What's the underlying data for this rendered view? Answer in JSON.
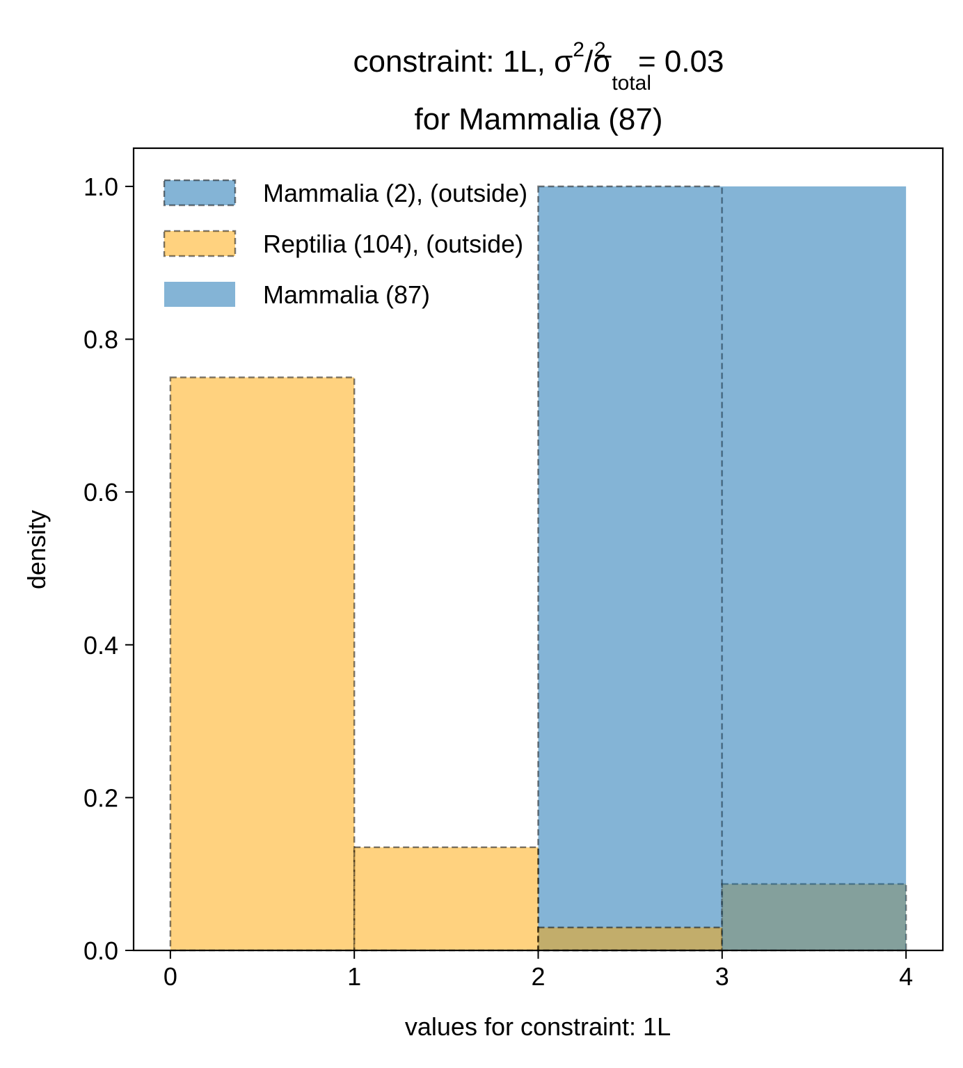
{
  "chart_data": {
    "type": "bar",
    "title": {
      "prefix": "constraint: 1L, σ",
      "sup1": "2",
      "mid": "/σ",
      "sub": "total",
      "sup2": "2",
      "suffix": " =  0.03",
      "line2": "for Mammalia (87)"
    },
    "xlabel": "values for constraint: 1L",
    "ylabel": "density",
    "xlim": [
      -0.2,
      4.2
    ],
    "ylim": [
      0,
      1.05
    ],
    "xticks": [
      0,
      1,
      2,
      3,
      4
    ],
    "xtick_labels": [
      "0",
      "1",
      "2",
      "3",
      "4"
    ],
    "yticks": [
      0,
      0.2,
      0.4,
      0.6,
      0.8,
      1.0
    ],
    "ytick_labels": [
      "0.0",
      "0.2",
      "0.4",
      "0.6",
      "0.8",
      "1.0"
    ],
    "bin_edges": [
      0,
      1,
      2,
      3,
      4
    ],
    "series": [
      {
        "name": "Mammalia (2), (outside)",
        "key": "mammalia-outside",
        "values": [
          0,
          0,
          1.0,
          0
        ],
        "color": "#1f77b4",
        "alpha": 0.55,
        "dashed_edge": true
      },
      {
        "name": "Reptilia (104), (outside)",
        "key": "reptilia-outside",
        "values": [
          0.75,
          0.135,
          0.03,
          0.087
        ],
        "color": "#ffa500",
        "alpha": 0.5,
        "dashed_edge": true
      },
      {
        "name": "Mammalia (87)",
        "key": "mammalia",
        "values": [
          0,
          0,
          0,
          1.0
        ],
        "color": "#1f77b4",
        "alpha": 0.55,
        "dashed_edge": false
      }
    ],
    "legend_position": "top-left",
    "grid": false
  }
}
